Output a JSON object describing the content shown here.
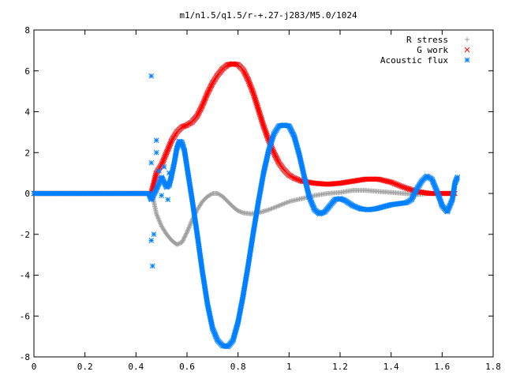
{
  "chart_data": {
    "type": "scatter",
    "title": "m1/n1.5/q1.5/r-+.27-j283/M5.0/1024",
    "xlabel": "",
    "ylabel": "",
    "xlim": [
      0,
      1.8
    ],
    "ylim": [
      -8,
      8
    ],
    "x_ticks": [
      "0",
      "0.2",
      "0.4",
      "0.6",
      "0.8",
      "1",
      "1.2",
      "1.4",
      "1.6",
      "1.8"
    ],
    "y_ticks": [
      "-8",
      "-6",
      "-4",
      "-2",
      "0",
      "2",
      "4",
      "6",
      "8"
    ],
    "grid": false,
    "legend_position": "top-right",
    "series": [
      {
        "name": "R stress",
        "marker": "plus",
        "color": "#a0a0a0",
        "points": [
          [
            0.0,
            0.0
          ],
          [
            0.1,
            0.0
          ],
          [
            0.2,
            0.0
          ],
          [
            0.3,
            0.0
          ],
          [
            0.4,
            0.0
          ],
          [
            0.46,
            0.0
          ],
          [
            0.47,
            -0.4
          ],
          [
            0.48,
            -1.0
          ],
          [
            0.5,
            -1.6
          ],
          [
            0.52,
            -2.0
          ],
          [
            0.54,
            -2.3
          ],
          [
            0.56,
            -2.5
          ],
          [
            0.58,
            -2.4
          ],
          [
            0.6,
            -1.9
          ],
          [
            0.62,
            -1.3
          ],
          [
            0.64,
            -0.8
          ],
          [
            0.66,
            -0.4
          ],
          [
            0.68,
            -0.15
          ],
          [
            0.7,
            0.0
          ],
          [
            0.72,
            0.0
          ],
          [
            0.74,
            -0.15
          ],
          [
            0.76,
            -0.4
          ],
          [
            0.78,
            -0.65
          ],
          [
            0.8,
            -0.85
          ],
          [
            0.82,
            -0.95
          ],
          [
            0.85,
            -1.0
          ],
          [
            0.88,
            -0.95
          ],
          [
            0.92,
            -0.8
          ],
          [
            0.96,
            -0.6
          ],
          [
            1.0,
            -0.4
          ],
          [
            1.05,
            -0.25
          ],
          [
            1.1,
            -0.1
          ],
          [
            1.15,
            0.0
          ],
          [
            1.2,
            0.05
          ],
          [
            1.25,
            0.15
          ],
          [
            1.3,
            0.15
          ],
          [
            1.35,
            0.1
          ],
          [
            1.4,
            0.05
          ],
          [
            1.45,
            0.0
          ],
          [
            1.5,
            -0.05
          ],
          [
            1.55,
            0.0
          ],
          [
            1.6,
            0.0
          ],
          [
            1.65,
            0.0
          ]
        ]
      },
      {
        "name": "G work",
        "marker": "cross",
        "color": "#ff0000",
        "points": [
          [
            0.0,
            0.0
          ],
          [
            0.1,
            0.0
          ],
          [
            0.2,
            0.0
          ],
          [
            0.3,
            0.0
          ],
          [
            0.4,
            0.0
          ],
          [
            0.46,
            0.0
          ],
          [
            0.47,
            0.5
          ],
          [
            0.48,
            1.0
          ],
          [
            0.5,
            1.4
          ],
          [
            0.52,
            2.0
          ],
          [
            0.54,
            2.6
          ],
          [
            0.56,
            3.0
          ],
          [
            0.58,
            3.25
          ],
          [
            0.6,
            3.35
          ],
          [
            0.62,
            3.5
          ],
          [
            0.64,
            3.8
          ],
          [
            0.66,
            4.3
          ],
          [
            0.68,
            4.9
          ],
          [
            0.7,
            5.4
          ],
          [
            0.72,
            5.8
          ],
          [
            0.74,
            6.1
          ],
          [
            0.76,
            6.3
          ],
          [
            0.78,
            6.35
          ],
          [
            0.8,
            6.3
          ],
          [
            0.82,
            6.05
          ],
          [
            0.84,
            5.55
          ],
          [
            0.86,
            4.9
          ],
          [
            0.88,
            4.1
          ],
          [
            0.9,
            3.3
          ],
          [
            0.92,
            2.6
          ],
          [
            0.94,
            2.0
          ],
          [
            0.96,
            1.5
          ],
          [
            0.98,
            1.15
          ],
          [
            1.0,
            0.9
          ],
          [
            1.02,
            0.75
          ],
          [
            1.05,
            0.6
          ],
          [
            1.1,
            0.5
          ],
          [
            1.15,
            0.45
          ],
          [
            1.2,
            0.5
          ],
          [
            1.25,
            0.6
          ],
          [
            1.3,
            0.7
          ],
          [
            1.35,
            0.7
          ],
          [
            1.4,
            0.55
          ],
          [
            1.45,
            0.3
          ],
          [
            1.5,
            0.1
          ],
          [
            1.55,
            0.0
          ],
          [
            1.6,
            0.0
          ],
          [
            1.65,
            0.0
          ]
        ]
      },
      {
        "name": "Acoustic flux",
        "marker": "star",
        "color": "#0080ff",
        "points": [
          [
            0.0,
            0.0
          ],
          [
            0.1,
            0.0
          ],
          [
            0.2,
            0.0
          ],
          [
            0.3,
            0.0
          ],
          [
            0.4,
            0.0
          ],
          [
            0.45,
            0.0
          ],
          [
            0.46,
            -0.3
          ],
          [
            0.48,
            0.2
          ],
          [
            0.5,
            0.8
          ],
          [
            0.52,
            0.3
          ],
          [
            0.53,
            0.4
          ],
          [
            0.54,
            0.9
          ],
          [
            0.55,
            1.5
          ],
          [
            0.56,
            2.2
          ],
          [
            0.57,
            2.55
          ],
          [
            0.58,
            2.5
          ],
          [
            0.59,
            2.1
          ],
          [
            0.6,
            1.3
          ],
          [
            0.62,
            -0.3
          ],
          [
            0.64,
            -2.0
          ],
          [
            0.66,
            -3.8
          ],
          [
            0.68,
            -5.4
          ],
          [
            0.7,
            -6.6
          ],
          [
            0.72,
            -7.2
          ],
          [
            0.74,
            -7.45
          ],
          [
            0.76,
            -7.5
          ],
          [
            0.78,
            -7.2
          ],
          [
            0.8,
            -6.3
          ],
          [
            0.82,
            -5.0
          ],
          [
            0.84,
            -3.5
          ],
          [
            0.86,
            -1.9
          ],
          [
            0.88,
            -0.4
          ],
          [
            0.9,
            1.0
          ],
          [
            0.92,
            2.1
          ],
          [
            0.94,
            2.9
          ],
          [
            0.96,
            3.3
          ],
          [
            0.98,
            3.35
          ],
          [
            1.0,
            3.3
          ],
          [
            1.02,
            2.8
          ],
          [
            1.04,
            1.9
          ],
          [
            1.06,
            0.8
          ],
          [
            1.08,
            -0.2
          ],
          [
            1.1,
            -0.8
          ],
          [
            1.12,
            -1.0
          ],
          [
            1.14,
            -0.9
          ],
          [
            1.16,
            -0.6
          ],
          [
            1.18,
            -0.3
          ],
          [
            1.2,
            -0.25
          ],
          [
            1.22,
            -0.35
          ],
          [
            1.25,
            -0.6
          ],
          [
            1.28,
            -0.75
          ],
          [
            1.31,
            -0.8
          ],
          [
            1.34,
            -0.75
          ],
          [
            1.37,
            -0.65
          ],
          [
            1.4,
            -0.55
          ],
          [
            1.43,
            -0.5
          ],
          [
            1.46,
            -0.45
          ],
          [
            1.48,
            -0.3
          ],
          [
            1.5,
            0.2
          ],
          [
            1.52,
            0.6
          ],
          [
            1.54,
            0.85
          ],
          [
            1.56,
            0.7
          ],
          [
            1.58,
            0.1
          ],
          [
            1.6,
            -0.6
          ],
          [
            1.62,
            -0.9
          ],
          [
            1.64,
            -0.3
          ],
          [
            1.65,
            0.5
          ],
          [
            1.66,
            0.8
          ]
        ],
        "scatter_points": [
          [
            0.46,
            5.75
          ],
          [
            0.46,
            1.5
          ],
          [
            0.46,
            -2.3
          ],
          [
            0.465,
            -3.55
          ],
          [
            0.47,
            -2.0
          ],
          [
            0.48,
            2.0
          ],
          [
            0.48,
            2.6
          ],
          [
            0.49,
            1.1
          ],
          [
            0.5,
            -0.1
          ],
          [
            0.5,
            0.7
          ],
          [
            0.51,
            1.3
          ],
          [
            0.52,
            0.5
          ],
          [
            0.525,
            -0.3
          ],
          [
            0.53,
            1.0
          ]
        ]
      }
    ]
  }
}
